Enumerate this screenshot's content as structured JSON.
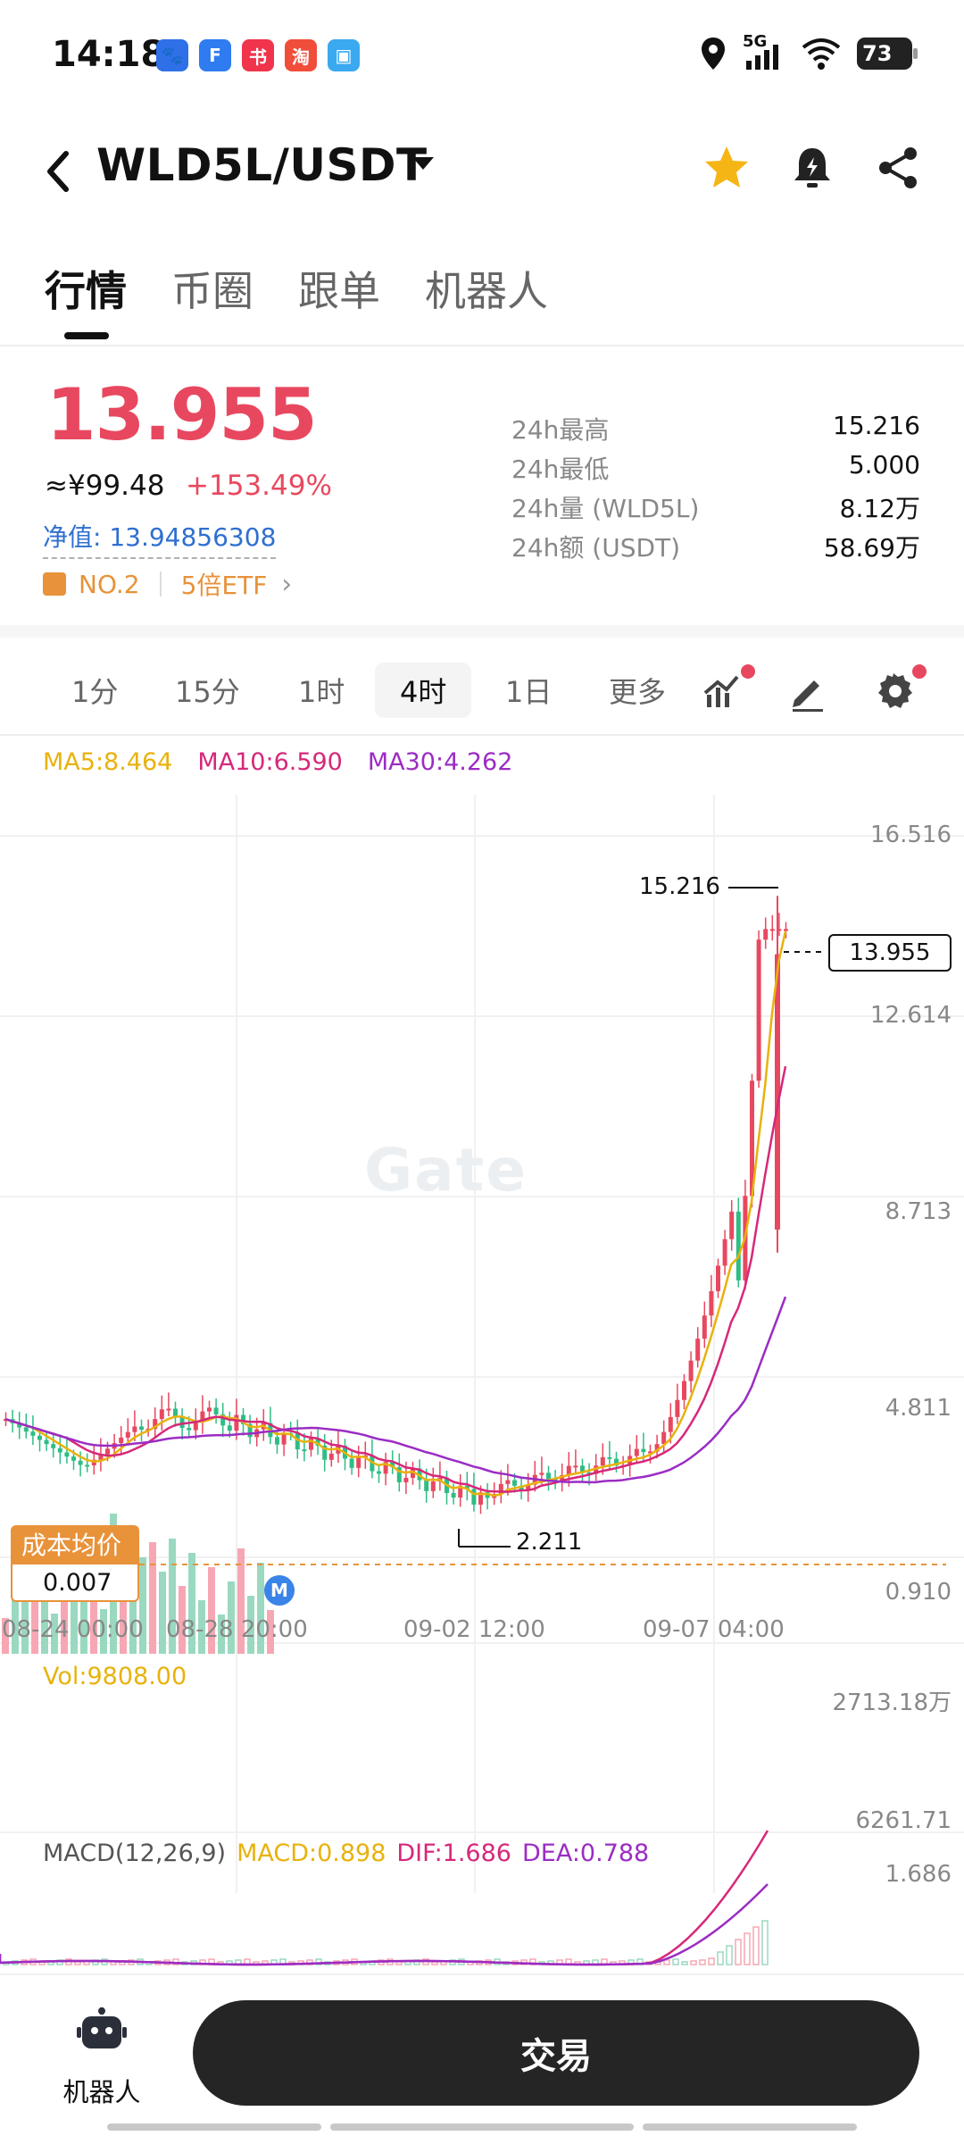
{
  "status": {
    "time": "14:18",
    "app_icons": [
      {
        "name": "baidu-icon",
        "glyph": "🐾",
        "color": "#2f6fe8"
      },
      {
        "name": "feishu-icon",
        "glyph": "F",
        "color": "#2f7bf0"
      },
      {
        "name": "xiaohongshu-icon",
        "glyph": "书",
        "color": "#f0344b"
      },
      {
        "name": "taobao-icon",
        "glyph": "淘",
        "color": "#f04d3a"
      },
      {
        "name": "square-app-icon",
        "glyph": "▣",
        "color": "#3aa9f0"
      }
    ],
    "network": "5G",
    "battery": "73"
  },
  "header": {
    "pair": "WLD5L/USDT"
  },
  "tabs": [
    {
      "label": "行情",
      "active": true
    },
    {
      "label": "币圈",
      "active": false
    },
    {
      "label": "跟单",
      "active": false
    },
    {
      "label": "机器人",
      "active": false
    }
  ],
  "quote": {
    "price": "13.955",
    "cny": "≈¥99.48",
    "change": "+153.49%",
    "nav": "净值: 13.94856308",
    "rank": "NO.2",
    "etf": "5倍ETF"
  },
  "stats": [
    {
      "label": "24h最高",
      "value": "15.216"
    },
    {
      "label": "24h最低",
      "value": "5.000"
    },
    {
      "label": "24h量 (WLD5L)",
      "value": "8.12万"
    },
    {
      "label": "24h额 (USDT)",
      "value": "58.69万"
    }
  ],
  "intervals": [
    {
      "label": "1分",
      "active": false
    },
    {
      "label": "15分",
      "active": false
    },
    {
      "label": "1时",
      "active": false
    },
    {
      "label": "4时",
      "active": true
    },
    {
      "label": "1日",
      "active": false
    },
    {
      "label": "更多",
      "active": false
    }
  ],
  "ma_legend": [
    {
      "label": "MA5:8.464",
      "color": "#e8b20c"
    },
    {
      "label": "MA10:6.590",
      "color": "#d6287a"
    },
    {
      "label": "MA30:4.262",
      "color": "#9b2cc4"
    }
  ],
  "chart": {
    "watermark": "Gate",
    "y_labels": [
      "16.516",
      "12.614",
      "8.713",
      "4.811",
      "0.910"
    ],
    "x_labels": [
      "08-24 00:00",
      "08-28 20:00",
      "09-02 12:00",
      "09-07 04:00"
    ],
    "current_price": "13.955",
    "high_marker": "15.216",
    "low_marker": "2.211",
    "cost_label": "成本均价",
    "cost_value": "0.007",
    "m_badge": "M",
    "up_color": "#e8485f",
    "down_color": "#2ebd85"
  },
  "volume": {
    "label": "Vol:9808.00",
    "y_top": "2713.18万",
    "y_bottom": "6261.71"
  },
  "macd": {
    "legend": [
      {
        "label": "MACD(12,26,9)",
        "color": "#555555"
      },
      {
        "label": "MACD:0.898",
        "color": "#e8b20c"
      },
      {
        "label": "DIF:1.686",
        "color": "#d6287a"
      },
      {
        "label": "DEA:0.788",
        "color": "#9b2cc4"
      }
    ],
    "y_top": "1.686"
  },
  "bottom": {
    "robot_label": "机器人",
    "trade_label": "交易"
  }
}
